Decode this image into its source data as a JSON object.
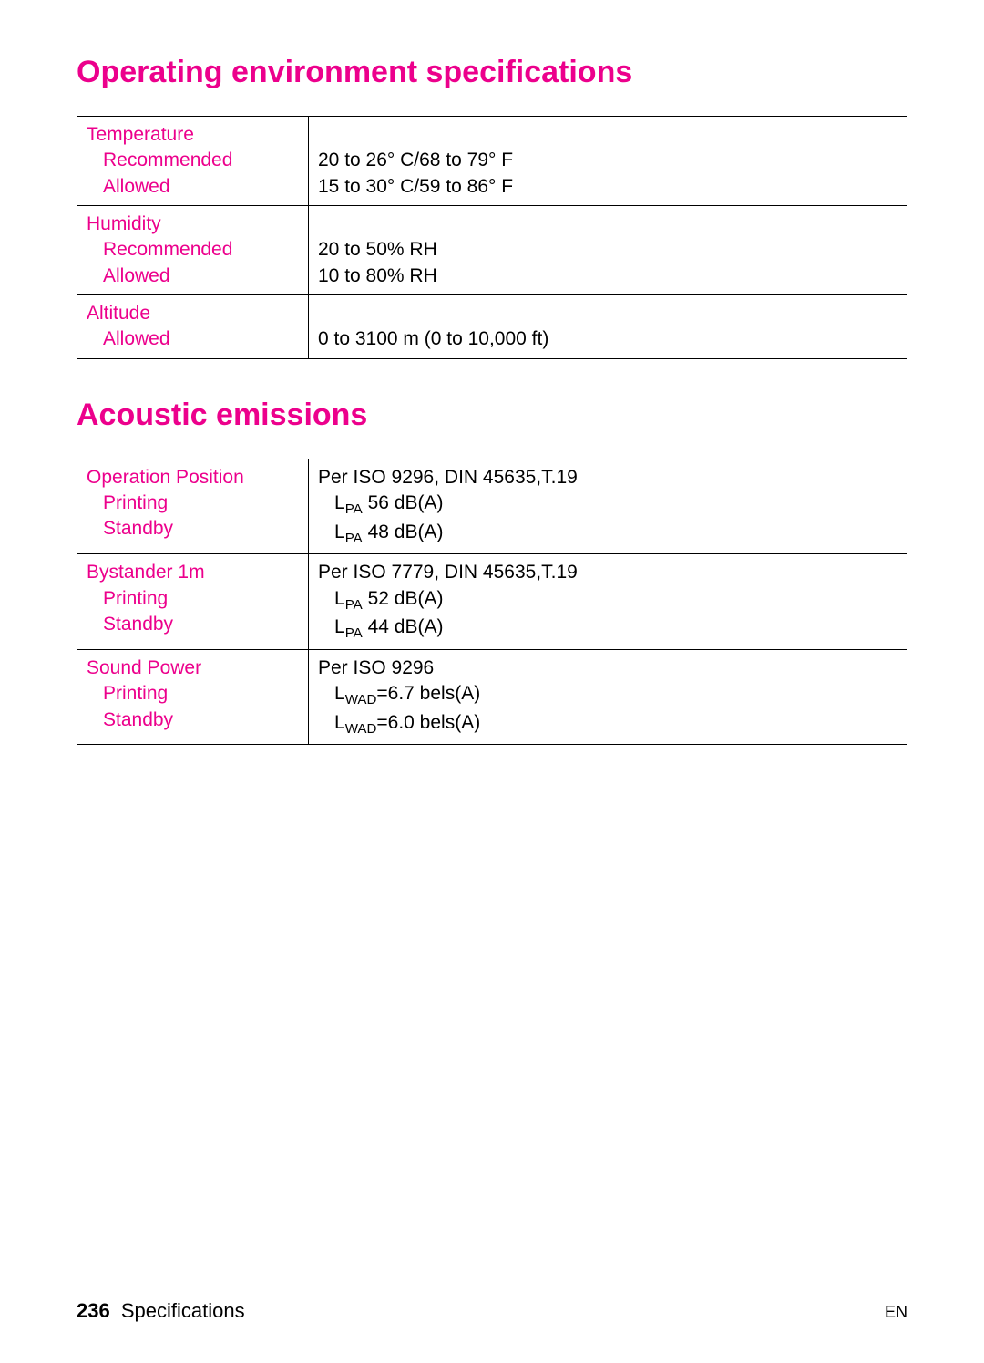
{
  "colors": {
    "accent": "#ec008c",
    "text": "#000000",
    "border": "#000000",
    "background": "#ffffff"
  },
  "sections": {
    "env": {
      "title": "Operating environment specifications",
      "rows": {
        "temp": {
          "label": "Temperature",
          "recommended_label": "Recommended",
          "recommended_value": "20 to 26° C/68 to 79° F",
          "allowed_label": "Allowed",
          "allowed_value": "15 to 30° C/59 to 86° F"
        },
        "humidity": {
          "label": "Humidity",
          "recommended_label": "Recommended",
          "recommended_value": "20 to 50% RH",
          "allowed_label": "Allowed",
          "allowed_value": "10 to 80% RH"
        },
        "altitude": {
          "label": "Altitude",
          "allowed_label": "Allowed",
          "allowed_value": "0 to 3100 m (0 to 10,000 ft)"
        }
      }
    },
    "acoustic": {
      "title": "Acoustic emissions",
      "rows": {
        "op": {
          "label": "Operation Position",
          "standard": "Per ISO 9296, DIN 45635,T.19",
          "printing_label": "Printing",
          "printing_prefix": "L",
          "printing_sub": "PA",
          "printing_value": " 56 dB(A)",
          "standby_label": "Standby",
          "standby_prefix": "L",
          "standby_sub": "PA",
          "standby_value": " 48 dB(A)"
        },
        "bystander": {
          "label": "Bystander 1m",
          "standard": "Per ISO 7779, DIN 45635,T.19",
          "printing_label": "Printing",
          "printing_prefix": "L",
          "printing_sub": "PA",
          "printing_value": " 52 dB(A)",
          "standby_label": "Standby",
          "standby_prefix": "L",
          "standby_sub": "PA",
          "standby_value": " 44 dB(A)"
        },
        "power": {
          "label": "Sound Power",
          "standard": "Per ISO 9296",
          "printing_label": "Printing",
          "printing_prefix": "L",
          "printing_sub": "WAD",
          "printing_value": "=6.7 bels(A)",
          "standby_label": "Standby",
          "standby_prefix": "L",
          "standby_sub": "WAD",
          "standby_value": "=6.0 bels(A)"
        }
      }
    }
  },
  "footer": {
    "page_number": "236",
    "section": "Specifications",
    "lang": "EN"
  }
}
